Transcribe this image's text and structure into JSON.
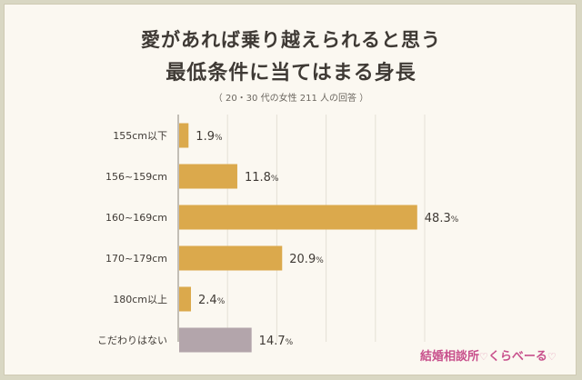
{
  "chart_data": {
    "type": "bar",
    "orientation": "horizontal",
    "title_lines": [
      "愛があれば乗り越えられると思う",
      "最低条件に当てはまる身長"
    ],
    "subtitle": "（ 20・30 代の女性 211 人の回答 ）",
    "categories": [
      "155cm以下",
      "156~159cm",
      "160~169cm",
      "170~179cm",
      "180cm以上",
      "こだわりはない"
    ],
    "values": [
      1.9,
      11.8,
      48.3,
      20.9,
      2.4,
      14.7
    ],
    "value_labels": [
      "1.9",
      "11.8",
      "48.3",
      "20.9",
      "2.4",
      "14.7"
    ],
    "unit": "%",
    "xlim": [
      0,
      50
    ],
    "grid": true,
    "colors": {
      "bar": "#dba94c",
      "bar_alt": "#b3a5ab",
      "grid": "#e4e0d6",
      "axis": "#8a847b"
    },
    "highlight_index": 5
  },
  "logo": {
    "text_main": "結婚相談所",
    "text_tail": "くらべーる",
    "heart_icon": "heart-icon"
  }
}
